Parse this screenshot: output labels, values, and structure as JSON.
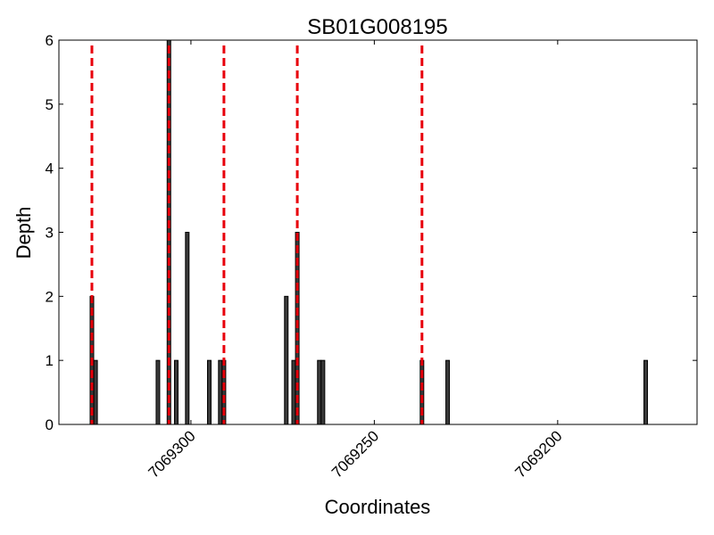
{
  "chart_data": {
    "type": "bar",
    "title": "SB01G008195",
    "xlabel": "Coordinates",
    "ylabel": "Depth",
    "xlim": [
      7069336,
      7069162
    ],
    "ylim": [
      0,
      6
    ],
    "x_reversed": true,
    "xticks": [
      7069300,
      7069250,
      7069200
    ],
    "xtick_labels": [
      "7069300",
      "7069250",
      "7069200"
    ],
    "xtick_rotation": 45,
    "yticks": [
      0,
      1,
      2,
      3,
      4,
      5,
      6
    ],
    "ytick_labels": [
      "0",
      "1",
      "2",
      "3",
      "4",
      "5",
      "6"
    ],
    "bars": [
      {
        "x": 7069327,
        "y": 2
      },
      {
        "x": 7069326,
        "y": 1
      },
      {
        "x": 7069309,
        "y": 1
      },
      {
        "x": 7069306,
        "y": 6
      },
      {
        "x": 7069304,
        "y": 1
      },
      {
        "x": 7069301,
        "y": 3
      },
      {
        "x": 7069295,
        "y": 1
      },
      {
        "x": 7069292,
        "y": 1
      },
      {
        "x": 7069291,
        "y": 1
      },
      {
        "x": 7069274,
        "y": 2
      },
      {
        "x": 7069272,
        "y": 1
      },
      {
        "x": 7069271,
        "y": 3
      },
      {
        "x": 7069265,
        "y": 1
      },
      {
        "x": 7069264,
        "y": 1
      },
      {
        "x": 7069237,
        "y": 1
      },
      {
        "x": 7069230,
        "y": 1
      },
      {
        "x": 7069176,
        "y": 1
      }
    ],
    "markers": {
      "color": "#e8000b",
      "style": "dashed",
      "x": [
        7069327,
        7069306,
        7069291,
        7069271,
        7069237
      ]
    },
    "bar_color": "#3a3a3a",
    "grid": false,
    "legend": "none"
  }
}
